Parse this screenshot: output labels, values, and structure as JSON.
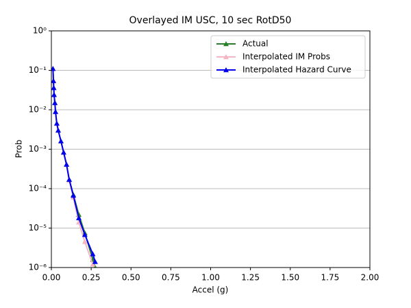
{
  "chart_data": {
    "type": "line",
    "title": "Overlayed IM USC, 10 sec RotD50",
    "x_label": "Accel (g)",
    "y_label": "Prob",
    "x": [
      0.01,
      0.013,
      0.015,
      0.017,
      0.022,
      0.026,
      0.034,
      0.043,
      0.06,
      0.077,
      0.095,
      0.112,
      0.138,
      0.172,
      0.21,
      0.26,
      0.275
    ],
    "series": [
      {
        "name": "Actual",
        "color": "#2a7f2a",
        "values": [
          0.11,
          0.054,
          0.036,
          0.024,
          0.015,
          0.0089,
          0.0045,
          0.003,
          0.0016,
          0.00083,
          0.00041,
          0.00017,
          7e-05,
          2.2e-05,
          7.5e-06,
          1.6e-06,
          1e-06
        ]
      },
      {
        "name": "Interpolated IM Probs",
        "color": "#f4b6c2",
        "values": [
          0.11,
          0.054,
          0.036,
          0.024,
          0.015,
          0.0089,
          0.0045,
          0.003,
          0.0016,
          0.00083,
          0.00041,
          0.00016,
          6e-05,
          1.4e-05,
          4.5e-06,
          1.2e-06,
          null
        ]
      },
      {
        "name": "Interpolated Hazard Curve",
        "color": "#0000ee",
        "values": [
          0.11,
          0.054,
          0.036,
          0.024,
          0.015,
          0.0089,
          0.0045,
          0.003,
          0.0016,
          0.00083,
          0.00041,
          0.00017,
          6.7e-05,
          1.8e-05,
          6.8e-06,
          2.2e-06,
          1.4e-06
        ]
      }
    ],
    "xlim": [
      0,
      2
    ],
    "xticks": [
      {
        "value": 0,
        "label": "0.00"
      },
      0.25,
      {
        "value": 0.5,
        "label": "0.50"
      },
      0.75,
      {
        "value": 1,
        "label": "1.00"
      },
      1.25,
      {
        "value": 1.5,
        "label": "1.50"
      },
      1.75,
      {
        "value": 2,
        "label": "2.00"
      }
    ],
    "ylim": [
      1e-06,
      1
    ],
    "yticks": [
      {
        "value": 1e-06,
        "label": "10⁻⁶"
      },
      {
        "value": 1e-05,
        "label": "10⁻⁵"
      },
      {
        "value": 0.0001,
        "label": "10⁻⁴"
      },
      {
        "value": 0.001,
        "label": "10⁻³"
      },
      {
        "value": 0.01,
        "label": "10⁻²"
      },
      {
        "value": 0.1,
        "label": "10⁻¹"
      },
      {
        "value": 1,
        "label": "10⁰"
      }
    ],
    "yscale": "log",
    "grid": "y",
    "legend": "upper right"
  }
}
